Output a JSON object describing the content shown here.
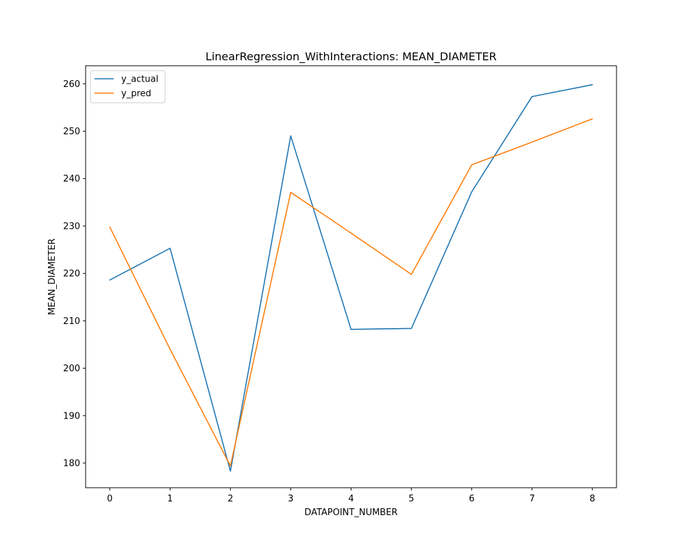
{
  "chart_data": {
    "type": "line",
    "title": "LinearRegression_WithInteractions: MEAN_DIAMETER",
    "xlabel": "DATAPOINT_NUMBER",
    "ylabel": "MEAN_DIAMETER",
    "x": [
      0,
      1,
      2,
      3,
      4,
      5,
      6,
      7,
      8
    ],
    "xticks": [
      "0",
      "1",
      "2",
      "3",
      "4",
      "5",
      "6",
      "7",
      "8"
    ],
    "yticks": [
      "180",
      "190",
      "200",
      "210",
      "220",
      "230",
      "240",
      "250",
      "260"
    ],
    "xlim": [
      -0.4,
      8.4
    ],
    "ylim": [
      174.8,
      263.8
    ],
    "grid": false,
    "legend_position": "upper-left",
    "series": [
      {
        "name": "y_actual",
        "color": "#1f77b4",
        "values": [
          218.6,
          225.3,
          178.3,
          249.0,
          208.2,
          208.4,
          237.2,
          257.3,
          259.8
        ]
      },
      {
        "name": "y_pred",
        "color": "#ff7f0e",
        "values": [
          229.8,
          204.0,
          179.4,
          237.1,
          228.5,
          219.8,
          242.9,
          247.7,
          252.6
        ]
      }
    ]
  }
}
